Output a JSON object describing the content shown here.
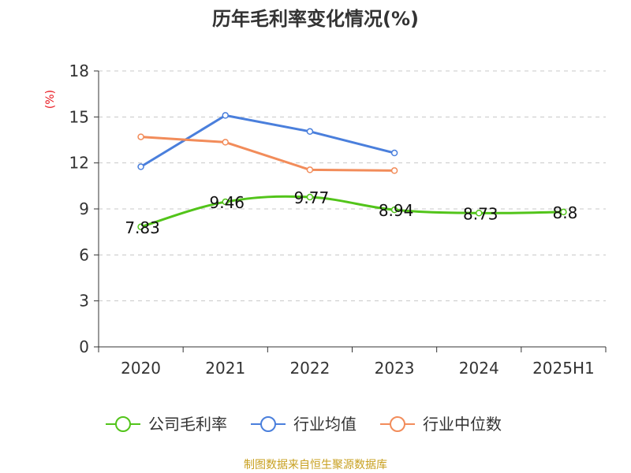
{
  "chart_data": {
    "type": "line",
    "title": "历年毛利率变化情况(%)",
    "ylabel": "(%)",
    "categories": [
      "2020",
      "2021",
      "2022",
      "2023",
      "2024",
      "2025H1"
    ],
    "ylim": [
      0,
      18
    ],
    "yticks": [
      0,
      3,
      6,
      9,
      12,
      15,
      18
    ],
    "grid": "horizontal-dashed",
    "legend_position": "bottom",
    "series": [
      {
        "name": "公司毛利率",
        "color": "#52c41a",
        "values": [
          7.83,
          9.46,
          9.77,
          8.94,
          8.73,
          8.8
        ],
        "labels": [
          "7.83",
          "9.46",
          "9.77",
          "8.94",
          "8.73",
          "8.8"
        ],
        "smooth": true
      },
      {
        "name": "行业均值",
        "color": "#4a7fdc",
        "values": [
          11.75,
          15.1,
          14.05,
          12.65,
          null,
          null
        ]
      },
      {
        "name": "行业中位数",
        "color": "#f28c5a",
        "values": [
          13.7,
          13.35,
          11.55,
          11.5,
          null,
          null
        ]
      }
    ]
  },
  "source_text": "制图数据来自恒生聚源数据库"
}
